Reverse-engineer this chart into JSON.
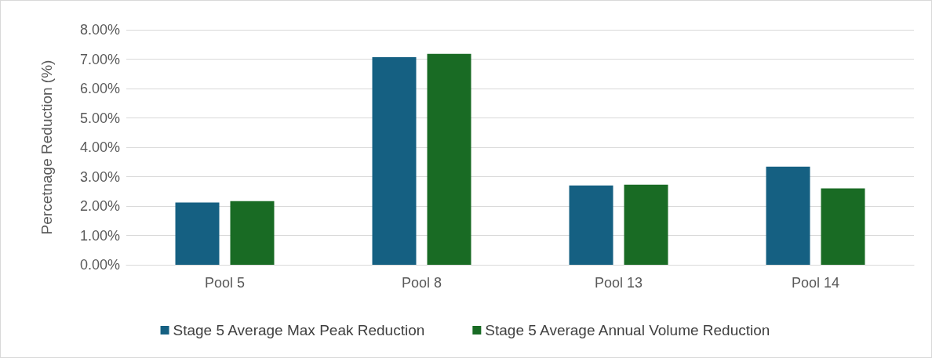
{
  "chart_data": {
    "type": "bar",
    "ylabel": "Percetnage Reduction (%)",
    "categories": [
      "Pool 5",
      "Pool 8",
      "Pool 13",
      "Pool 14"
    ],
    "series": [
      {
        "name": "Stage 5 Average Max Peak Reduction",
        "color": "#156082",
        "values": [
          2.12,
          7.07,
          2.7,
          3.34
        ]
      },
      {
        "name": "Stage 5 Average Annual Volume Reduction",
        "color": "#196b24",
        "values": [
          2.17,
          7.18,
          2.73,
          2.6
        ]
      }
    ],
    "ylim": [
      0,
      8
    ],
    "yticks": [
      {
        "value": 0,
        "label": "0.00%"
      },
      {
        "value": 1,
        "label": "1.00%"
      },
      {
        "value": 2,
        "label": "2.00%"
      },
      {
        "value": 3,
        "label": "3.00%"
      },
      {
        "value": 4,
        "label": "4.00%"
      },
      {
        "value": 5,
        "label": "5.00%"
      },
      {
        "value": 6,
        "label": "6.00%"
      },
      {
        "value": 7,
        "label": "7.00%"
      },
      {
        "value": 8,
        "label": "8.00%"
      }
    ],
    "grid": "y",
    "legend": "bottom"
  }
}
